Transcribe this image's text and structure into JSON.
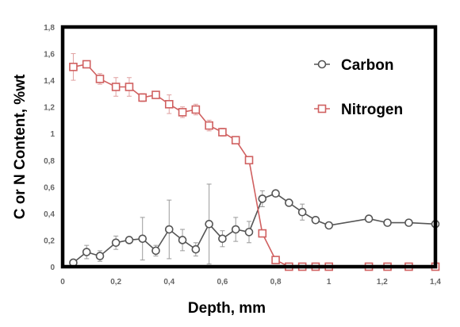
{
  "chart_data": {
    "type": "scatter",
    "xlabel": "Depth, mm",
    "ylabel": "C or N Content, %wt",
    "xlim": [
      0,
      1.4
    ],
    "ylim": [
      0,
      1.8
    ],
    "x_ticks": [
      "0",
      "0,2",
      "0,4",
      "0,6",
      "0,8",
      "1",
      "1,2",
      "1,4"
    ],
    "x_tick_values": [
      0,
      0.2,
      0.4,
      0.6,
      0.8,
      1.0,
      1.2,
      1.4
    ],
    "y_ticks": [
      "0",
      "0,2",
      "0,4",
      "0,6",
      "0,8",
      "1",
      "1,2",
      "1,4",
      "1,6",
      "1,8"
    ],
    "y_tick_values": [
      0,
      0.2,
      0.4,
      0.6,
      0.8,
      1.0,
      1.2,
      1.4,
      1.6,
      1.8
    ],
    "legend_position": "top-right",
    "series": [
      {
        "name": "Carbon",
        "color": "#555555",
        "marker": "circle",
        "x": [
          0.04,
          0.09,
          0.14,
          0.2,
          0.25,
          0.3,
          0.35,
          0.4,
          0.45,
          0.5,
          0.55,
          0.6,
          0.65,
          0.7,
          0.75,
          0.8,
          0.85,
          0.9,
          0.95,
          1.0,
          1.15,
          1.22,
          1.3,
          1.4
        ],
        "y": [
          0.03,
          0.11,
          0.08,
          0.18,
          0.2,
          0.21,
          0.12,
          0.28,
          0.2,
          0.13,
          0.32,
          0.21,
          0.28,
          0.26,
          0.51,
          0.55,
          0.48,
          0.41,
          0.35,
          0.31,
          0.36,
          0.33,
          0.33,
          0.32
        ],
        "err": [
          0.02,
          0.05,
          0.04,
          0.05,
          0.02,
          0.16,
          0.04,
          0.22,
          0.08,
          0.05,
          0.3,
          0.06,
          0.09,
          0.08,
          0.06,
          0.02,
          0.02,
          0.06,
          0.02,
          0.02,
          0.01,
          0.01,
          0.01,
          0.01
        ]
      },
      {
        "name": "Nitrogen",
        "color": "#d06060",
        "marker": "square",
        "x": [
          0.04,
          0.09,
          0.14,
          0.2,
          0.25,
          0.3,
          0.35,
          0.4,
          0.45,
          0.5,
          0.55,
          0.6,
          0.65,
          0.7,
          0.75,
          0.8,
          0.85,
          0.9,
          0.95,
          1.0,
          1.15,
          1.22,
          1.3,
          1.4
        ],
        "y": [
          1.5,
          1.52,
          1.41,
          1.35,
          1.35,
          1.27,
          1.29,
          1.22,
          1.16,
          1.18,
          1.06,
          1.01,
          0.95,
          0.8,
          0.25,
          0.05,
          0.0,
          0.0,
          0.0,
          0.0,
          0.0,
          0.0,
          0.0,
          0.0
        ],
        "err": [
          0.1,
          0.02,
          0.04,
          0.07,
          0.07,
          0.03,
          0.02,
          0.07,
          0.04,
          0.04,
          0.04,
          0.03,
          0.02,
          0.02,
          0.02,
          0.02,
          0.01,
          0.01,
          0.01,
          0.01,
          0.01,
          0.01,
          0.01,
          0.01
        ]
      }
    ]
  }
}
